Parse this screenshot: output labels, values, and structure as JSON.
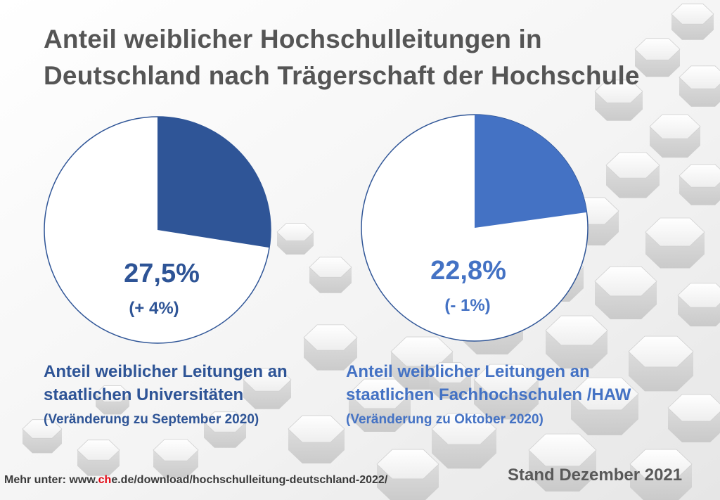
{
  "title": {
    "line1": "Anteil weiblicher Hochschulleitungen in",
    "line2": "Deutschland nach Trägerschaft der Hochschule"
  },
  "chart_data": [
    {
      "type": "pie",
      "title": "Anteil weiblicher Leitungen an staatlichen Universitäten",
      "value": 27.5,
      "label": "27,5%",
      "change_label": "(+ 4%)",
      "caption_line1": "Anteil weiblicher Leitungen an",
      "caption_line2": "staatlichen Universitäten",
      "caption_sub": "(Veränderung zu September 2020)",
      "color": "#2f5597"
    },
    {
      "type": "pie",
      "title": "Anteil weiblicher Leitungen an staatlichen Fachhochschulen / HAW",
      "value": 22.8,
      "label": "22,8%",
      "change_label": "(- 1%)",
      "caption_line1": "Anteil weiblicher Leitungen an",
      "caption_line2": "staatlichen Fachhochschulen /HAW",
      "caption_sub": "(Veränderung zu Oktober 2020)",
      "color": "#4472c4"
    }
  ],
  "footer": {
    "source_prefix": "Mehr unter: www.",
    "source_highlight": "c",
    "source_highlight2": "h",
    "source_suffix": "e.de/download/hochschulleitung-deutschland-2022/",
    "date": "Stand Dezember 2021"
  },
  "colors": {
    "text_gray": "#555555",
    "left_accent": "#2f5597",
    "right_accent": "#4472c4",
    "ring": "#2f5597"
  }
}
